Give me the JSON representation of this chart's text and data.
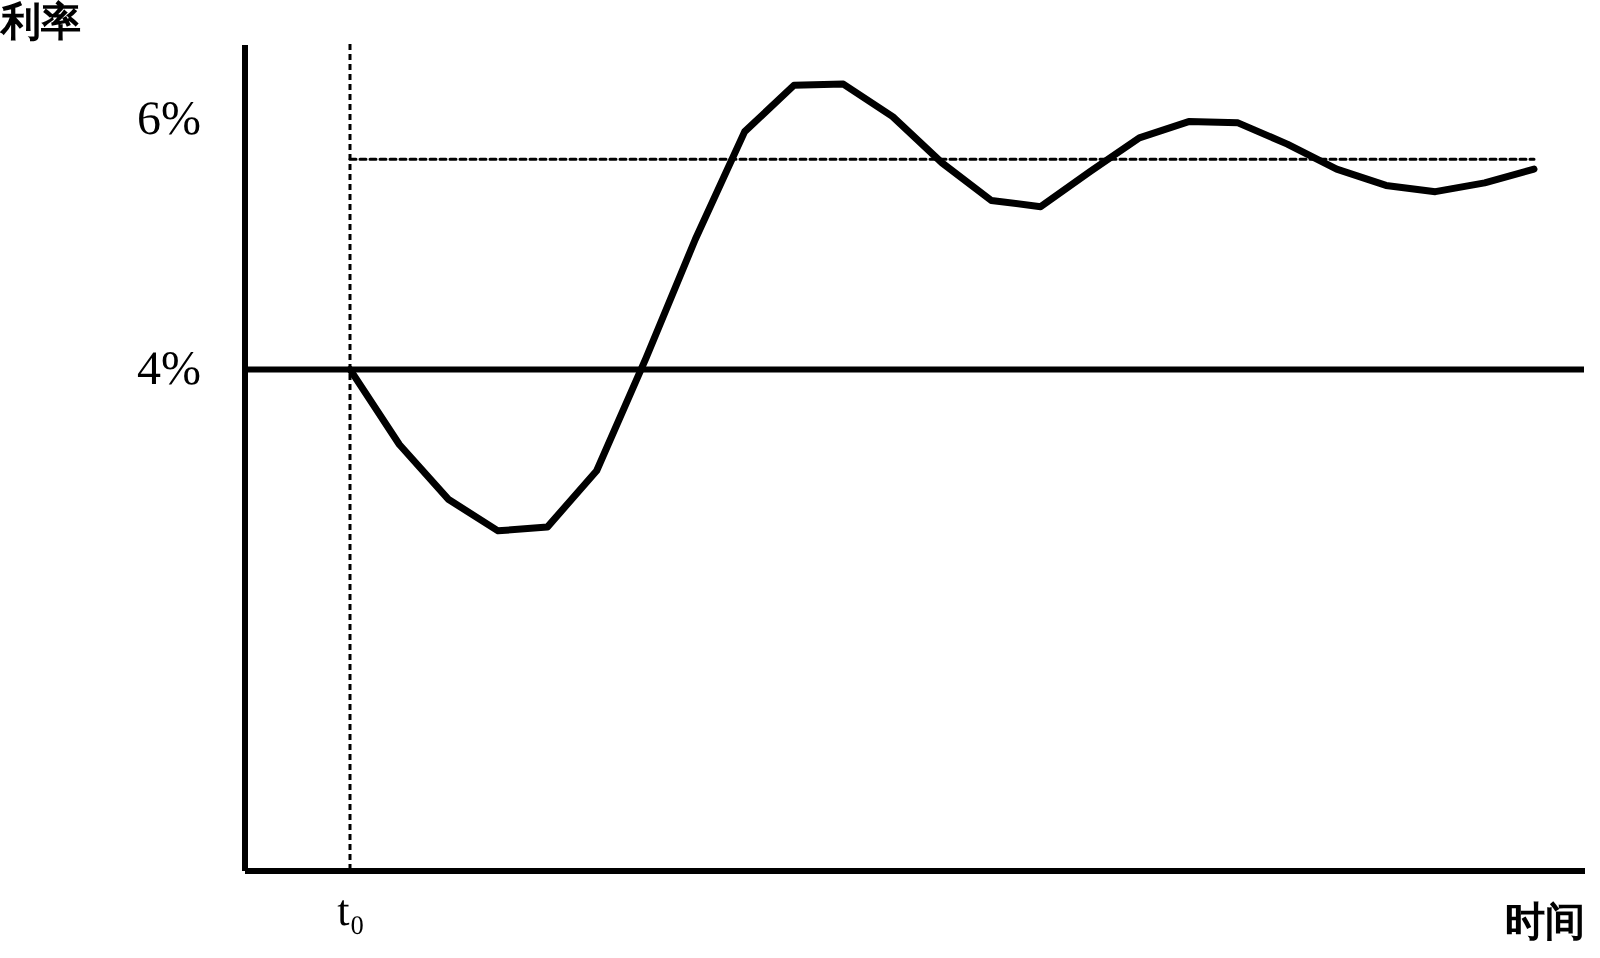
{
  "chart_data": {
    "type": "line",
    "xlabel": "时间",
    "ylabel": "利率",
    "categories": [
      "t₀",
      null,
      null,
      null,
      null,
      null,
      null,
      null,
      null,
      null,
      null,
      null,
      null,
      null,
      null,
      null,
      null,
      null,
      null,
      null,
      null,
      null,
      null,
      null,
      null
    ],
    "ylim": [
      0,
      6.6
    ],
    "yticks": [
      {
        "value": 4,
        "label": "4%"
      },
      {
        "value": 6,
        "label": "6%"
      }
    ],
    "grid": false,
    "series": [
      {
        "color": "#000000",
        "line_style": "solid",
        "values": [
          4.0,
          3.4,
          2.96,
          2.71,
          2.74,
          3.19,
          4.09,
          5.04,
          5.9,
          6.27,
          6.28,
          6.02,
          5.65,
          5.35,
          5.3,
          5.58,
          5.85,
          5.98,
          5.97,
          5.8,
          5.6,
          5.47,
          5.42,
          5.49,
          5.6
        ]
      },
      {
        "color": "#000000",
        "line_style": "dashed",
        "values": [
          5.68,
          5.68,
          5.68,
          5.68,
          5.68,
          5.68,
          5.68,
          5.68,
          5.68,
          5.68,
          5.68,
          5.68,
          5.68,
          5.68,
          5.68,
          5.68,
          5.68,
          5.68,
          5.68,
          5.68,
          5.68,
          5.68,
          5.68,
          5.68,
          5.68
        ]
      }
    ],
    "ref_lines": [
      {
        "axis": "y",
        "value": 4,
        "color": "#000000",
        "line_style": "solid"
      },
      {
        "axis": "x",
        "value": "t₀",
        "color": "#000000",
        "line_style": "dashed"
      }
    ]
  }
}
